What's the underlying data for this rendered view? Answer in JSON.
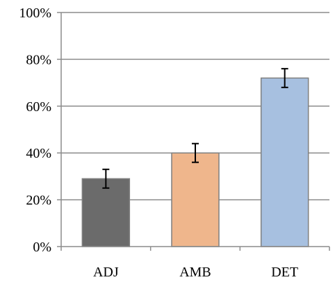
{
  "chart_data": {
    "type": "bar",
    "categories": [
      "ADJ",
      "AMB",
      "DET"
    ],
    "values": [
      29,
      40,
      72
    ],
    "errors": [
      4,
      4,
      4
    ],
    "ylim": [
      0,
      100
    ],
    "yticks": [
      0,
      20,
      40,
      60,
      80,
      100
    ],
    "ytick_labels": [
      "0%",
      "20%",
      "40%",
      "60%",
      "80%",
      "100%"
    ],
    "grid": true,
    "colors": [
      "#6b6b6b",
      "#efb68c",
      "#a7c0e0"
    ],
    "edge_color": "#7f7f7f",
    "title": "",
    "xlabel": "",
    "ylabel": ""
  }
}
